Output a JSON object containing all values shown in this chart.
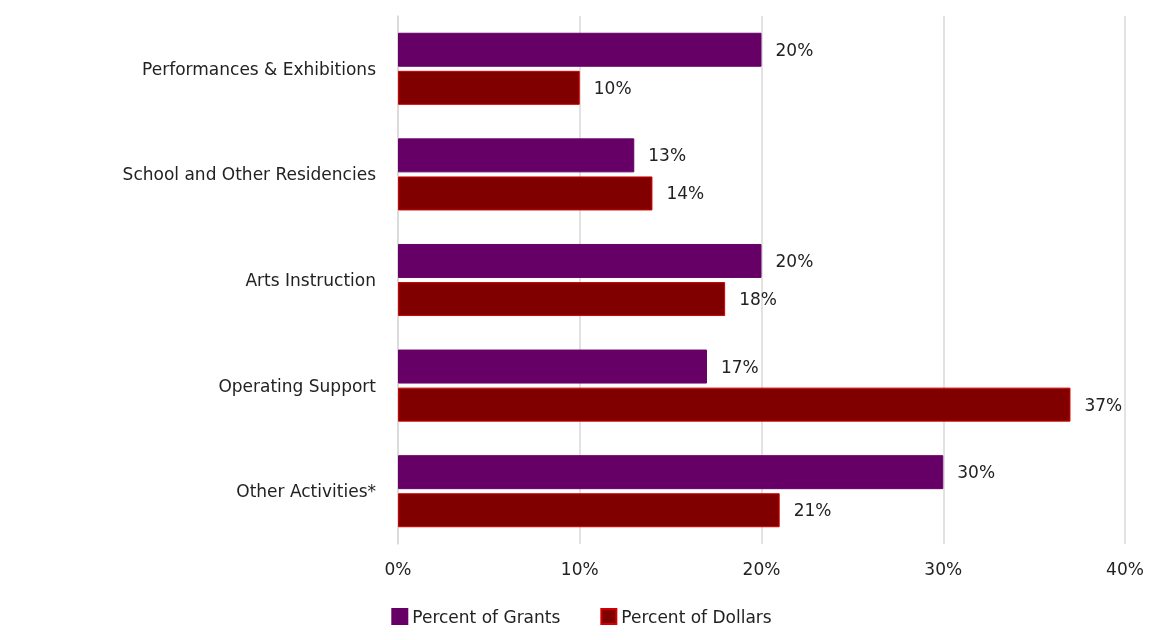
{
  "chart_data": {
    "type": "bar",
    "orientation": "horizontal",
    "categories": [
      "Performances & Exhibitions",
      "School and Other Residencies",
      "Arts Instruction",
      "Operating Support",
      "Other Activities*"
    ],
    "series": [
      {
        "name": "Percent of Grants",
        "color": "#660066",
        "values": [
          20,
          13,
          20,
          17,
          30
        ],
        "value_labels": [
          "20%",
          "13%",
          "20%",
          "17%",
          "30%"
        ]
      },
      {
        "name": "Percent of Dollars",
        "color": "#800000",
        "values": [
          10,
          14,
          18,
          37,
          21
        ],
        "value_labels": [
          "10%",
          "14%",
          "18%",
          "37%",
          "21%"
        ]
      }
    ],
    "xlim": [
      0,
      40
    ],
    "xticks": [
      {
        "value": 0,
        "label": "0%"
      },
      {
        "value": 10,
        "label": "10%"
      },
      {
        "value": 20,
        "label": "20%"
      },
      {
        "value": 30,
        "label": "30%"
      },
      {
        "value": 40,
        "label": "40%"
      }
    ],
    "grid": "x",
    "legend": "bottom"
  }
}
